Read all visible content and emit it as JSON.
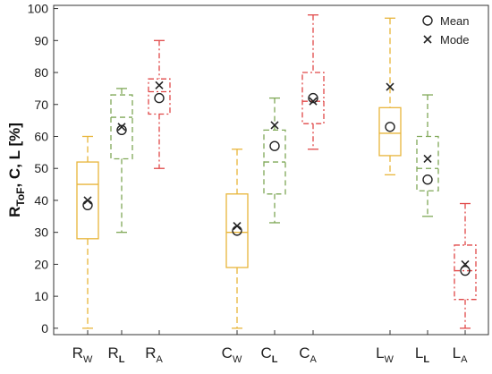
{
  "chart_data": {
    "type": "box",
    "ylabel": {
      "main": "R",
      "sub": "ToF",
      "rest": ", C, L  [%]"
    },
    "ylim": [
      -2,
      101
    ],
    "yticks": [
      0,
      10,
      20,
      30,
      40,
      50,
      60,
      70,
      80,
      90,
      100
    ],
    "grid": false,
    "legend": {
      "placement": "top-right",
      "entries": [
        {
          "label": "Mean",
          "marker": "circle"
        },
        {
          "label": "Mode",
          "marker": "x"
        }
      ]
    },
    "colors": {
      "W": "#e8b53a",
      "L": "#7fa857",
      "A": "#e04848"
    },
    "categories": [
      {
        "main": "R",
        "sub": "W",
        "group": "W",
        "min": 0,
        "q1": 28,
        "median": 45,
        "q3": 52,
        "max": 60,
        "mean": 38.5,
        "mode": 40
      },
      {
        "main": "R",
        "sub": "L",
        "group": "L",
        "min": 30,
        "q1": 53,
        "median": 66,
        "q3": 73,
        "max": 75,
        "mean": 62,
        "mode": 63
      },
      {
        "main": "R",
        "sub": "A",
        "group": "A",
        "min": 50,
        "q1": 67,
        "median": 74,
        "q3": 78,
        "max": 90,
        "mean": 72,
        "mode": 76
      },
      {
        "main": "C",
        "sub": "W",
        "group": "W",
        "min": 0,
        "q1": 19,
        "median": 30,
        "q3": 42,
        "max": 56,
        "mean": 30.5,
        "mode": 32
      },
      {
        "main": "C",
        "sub": "L",
        "group": "L",
        "min": 33,
        "q1": 42,
        "median": 52,
        "q3": 62,
        "max": 72,
        "mean": 57,
        "mode": 63.5
      },
      {
        "main": "C",
        "sub": "A",
        "group": "A",
        "min": 56,
        "q1": 64,
        "median": 71,
        "q3": 80,
        "max": 98,
        "mean": 72,
        "mode": 71
      },
      {
        "main": "L",
        "sub": "W",
        "group": "W",
        "min": 48,
        "q1": 54,
        "median": 61,
        "q3": 69,
        "max": 97,
        "mean": 63,
        "mode": 75.5
      },
      {
        "main": "L",
        "sub": "L",
        "group": "L",
        "min": 35,
        "q1": 43,
        "median": 50,
        "q3": 60,
        "max": 73,
        "mean": 46.5,
        "mode": 53
      },
      {
        "main": "L",
        "sub": "A",
        "group": "A",
        "min": 0,
        "q1": 9,
        "median": 18,
        "q3": 26,
        "max": 39,
        "mean": 18,
        "mode": 20
      }
    ]
  }
}
